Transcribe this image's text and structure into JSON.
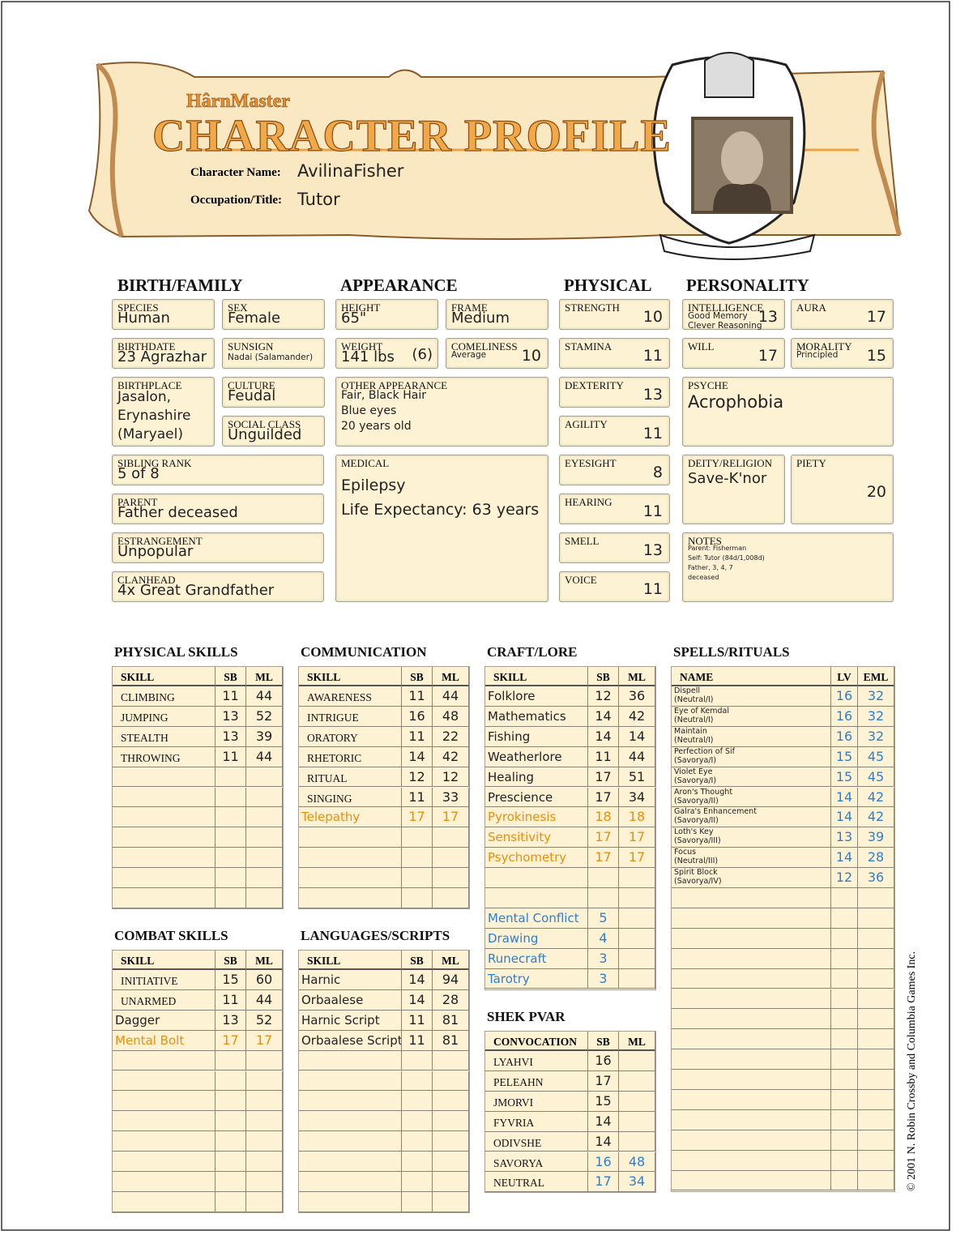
{
  "header": {
    "logo": "HârnMaster",
    "title": "CHARACTER PROFILE",
    "name_label": "Character Name:",
    "name": "AvilinaFisher",
    "occupation_label": "Occupation/Title:",
    "occupation": "Tutor"
  },
  "copyright": "© 2001 N. Robin Crossby and Columbia Games Inc.",
  "sections": [
    {
      "title": "BIRTH/FAMILY",
      "fields": [
        {
          "label": "SPECIES",
          "value": "Human"
        },
        {
          "label": "SEX",
          "value": "Female"
        },
        {
          "label": "BIRTHDATE",
          "value": "23 Agrazhar"
        },
        {
          "label": "SUNSIGN",
          "note": [
            "Nadai (Salamander)"
          ]
        },
        {
          "label": "BIRTHPLACE",
          "value": [
            "Jasalon,",
            "Erynashire",
            "(Maryael)"
          ]
        },
        {
          "label": "CULTURE",
          "value": "Feudal"
        },
        {
          "label": "SOCIAL CLASS",
          "value": "Unguilded"
        },
        {
          "label": "SIBLING RANK",
          "value": "5 of 8"
        },
        {
          "label": "PARENT",
          "value": "Father deceased"
        },
        {
          "label": "ESTRANGEMENT",
          "value": "Unpopular"
        },
        {
          "label": "CLANHEAD",
          "value": "4x Great Grandfather"
        }
      ]
    },
    {
      "title": "APPEARANCE",
      "fields": [
        {
          "label": "HEIGHT",
          "value": "65\""
        },
        {
          "label": "FRAME",
          "value": "Medium"
        },
        {
          "label": "WEIGHT",
          "value": "141 lbs",
          "extra": "(6)"
        },
        {
          "label": "COMELINESS",
          "note": [
            "Average"
          ],
          "value": 10
        },
        {
          "label": "OTHER APPEARANCE",
          "value": [
            "Fair, Black Hair",
            "Blue eyes",
            "20 years old"
          ]
        },
        {
          "label": "MEDICAL",
          "value": [
            "Epilepsy",
            "Life Expectancy: 63 years"
          ]
        }
      ]
    },
    {
      "title": "PHYSICAL",
      "fields": [
        {
          "label": "STRENGTH",
          "value": 10
        },
        {
          "label": "STAMINA",
          "value": 11
        },
        {
          "label": "DEXTERITY",
          "value": 13
        },
        {
          "label": "AGILITY",
          "value": 11
        },
        {
          "label": "EYESIGHT",
          "value": 8
        },
        {
          "label": "HEARING",
          "value": 11
        },
        {
          "label": "SMELL",
          "value": 13
        },
        {
          "label": "VOICE",
          "value": 11
        }
      ]
    },
    {
      "title": "PERSONALITY",
      "fields": [
        {
          "label": "INTELLIGENCE",
          "note": [
            "Good Memory",
            "Clever Reasoning"
          ],
          "value": 13
        },
        {
          "label": "AURA",
          "value": 17
        },
        {
          "label": "WILL",
          "value": 17
        },
        {
          "label": "MORALITY",
          "note": [
            "Principled"
          ],
          "value": 15
        },
        {
          "label": "PSYCHE",
          "value": "Acrophobia"
        },
        {
          "label": "DEITY/RELIGION",
          "value": "Save-K'nor"
        },
        {
          "label": "PIETY",
          "value": 20
        },
        {
          "label": "NOTES",
          "note": [
            "Parent: Fisherman",
            "Self: Tutor (84d/1,008d)",
            "Father, 3, 4, 7",
            "deceased"
          ]
        }
      ]
    }
  ],
  "tables": [
    {
      "title": "PHYSICAL SKILLS",
      "columns": [
        "SKILL",
        "SB",
        "ML"
      ],
      "rows": [
        [
          "CLIMBING",
          11,
          44
        ],
        [
          "JUMPING",
          13,
          52
        ],
        [
          "STEALTH",
          13,
          39
        ],
        [
          "THROWING",
          11,
          44
        ]
      ]
    },
    {
      "title": "COMMUNICATION",
      "columns": [
        "SKILL",
        "SB",
        "ML"
      ],
      "rows": [
        [
          "AWARENESS",
          11,
          44
        ],
        [
          "INTRIGUE",
          16,
          48
        ],
        [
          "ORATORY",
          11,
          22
        ],
        [
          "RHETORIC",
          14,
          42
        ],
        [
          "RITUAL",
          12,
          12
        ],
        [
          "SINGING",
          11,
          33
        ],
        [
          "Telepathy",
          17,
          17
        ]
      ],
      "row_colors": [
        null,
        null,
        null,
        null,
        null,
        null,
        "#e8900c"
      ]
    },
    {
      "title": "CRAFT/LORE",
      "columns": [
        "SKILL",
        "SB",
        "ML"
      ],
      "rows": [
        [
          "Folklore",
          12,
          36
        ],
        [
          "Mathematics",
          14,
          42
        ],
        [
          "Fishing",
          14,
          14
        ],
        [
          "Weatherlore",
          11,
          44
        ],
        [
          "Healing",
          17,
          51
        ],
        [
          "Prescience",
          17,
          34
        ],
        [
          "Pyrokinesis",
          18,
          18
        ],
        [
          "Sensitivity",
          17,
          17
        ],
        [
          "Psychometry",
          17,
          17
        ],
        [],
        [],
        [
          "Mental Conflict",
          5
        ],
        [
          "Drawing",
          4
        ],
        [
          "Runecraft",
          3
        ],
        [
          "Tarotry",
          3
        ]
      ],
      "row_colors": [
        null,
        null,
        null,
        null,
        null,
        null,
        "#e8900c",
        "#e8900c",
        "#e8900c",
        null,
        null,
        "#2f7fcf",
        "#2f7fcf",
        "#2f7fcf",
        "#2f7fcf"
      ]
    },
    {
      "title": "SPELLS/RITUALS",
      "columns": [
        "NAME",
        "LV",
        "EML"
      ],
      "rows": [
        [
          [
            "Dispell",
            "(Neutral/I)"
          ],
          16,
          32
        ],
        [
          [
            "Eye of Kemdal",
            "(Neutral/I)"
          ],
          16,
          32
        ],
        [
          [
            "Maintain",
            "(Neutral/I)"
          ],
          16,
          32
        ],
        [
          [
            "Perfection of Sif",
            "(Savorya/I)"
          ],
          15,
          45
        ],
        [
          [
            "Violet Eye",
            "(Savorya/I)"
          ],
          15,
          45
        ],
        [
          [
            "Aron's Thought",
            "(Savorya/II)"
          ],
          14,
          42
        ],
        [
          [
            "Galra's Enhancement",
            "(Savorya/II)"
          ],
          14,
          42
        ],
        [
          [
            "Loth's Key",
            "(Savorya/III)"
          ],
          13,
          39
        ],
        [
          [
            "Focus",
            "(Neutral/III)"
          ],
          14,
          28
        ],
        [
          [
            "Spirit Block",
            "(Savorya/IV)"
          ],
          12,
          36
        ]
      ],
      "number_color": "#2f7fcf"
    },
    {
      "title": "COMBAT SKILLS",
      "columns": [
        "SKILL",
        "SB",
        "ML"
      ],
      "rows": [
        [
          "INITIATIVE",
          15,
          60
        ],
        [
          "UNARMED",
          11,
          44
        ],
        [
          "Dagger",
          13,
          52
        ],
        [
          "Mental Bolt",
          17,
          17
        ]
      ],
      "row_colors": [
        null,
        null,
        null,
        "#e8900c"
      ]
    },
    {
      "title": "LANGUAGES/SCRIPTS",
      "columns": [
        "SKILL",
        "SB",
        "ML"
      ],
      "rows": [
        [
          "Harnic",
          14,
          94
        ],
        [
          "Orbaalese",
          14,
          28
        ],
        [
          "Harnic Script",
          11,
          81
        ],
        [
          "Orbaalese Script",
          11,
          81
        ]
      ]
    },
    {
      "title": "SHEK PVAR",
      "columns": [
        "CONVOCATION",
        "SB",
        "ML"
      ],
      "rows": [
        [
          "LYAHVI",
          16
        ],
        [
          "PELEAHN",
          17
        ],
        [
          "JMORVI",
          15
        ],
        [
          "FYVRIA",
          14
        ],
        [
          "ODIVSHE",
          14
        ],
        [
          "SAVORYA",
          16,
          48
        ],
        [
          "NEUTRAL",
          17,
          34
        ]
      ],
      "row_colors": [
        null,
        null,
        null,
        null,
        null,
        "#2f7fcf",
        "#2f7fcf"
      ]
    }
  ]
}
